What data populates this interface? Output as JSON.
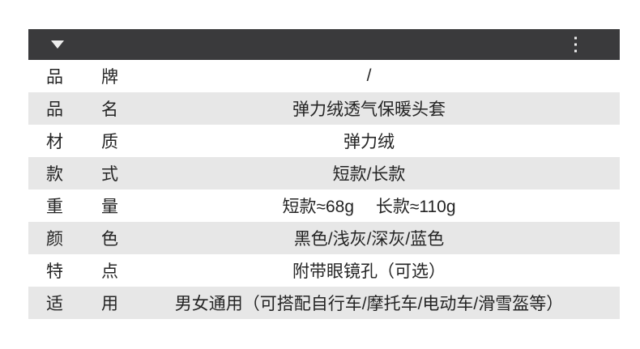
{
  "header": {
    "collapse_icon": "triangle-down",
    "more_icon": "kebab-vertical-dots"
  },
  "table": {
    "rows": [
      {
        "label": "品牌",
        "value": "/"
      },
      {
        "label": "品名",
        "value": "弹力绒透气保暖头套"
      },
      {
        "label": "材质",
        "value": "弹力绒"
      },
      {
        "label": "款式",
        "value": "短款/长款"
      },
      {
        "label": "重量",
        "value": "短款≈68g　 长款≈110g"
      },
      {
        "label": "颜色",
        "value": "黑色/浅灰/深灰/蓝色"
      },
      {
        "label": "特点",
        "value": "附带眼镜孔（可选）"
      },
      {
        "label": "适用",
        "value": "男女通用（可搭配自行车/摩托车/电动车/滑雪盔等）"
      }
    ]
  },
  "colors": {
    "header_bar": "#3a3a3c",
    "row_alt": "#e7e7e7",
    "row_default": "#ffffff",
    "text": "#242424",
    "icon": "#ededed"
  }
}
